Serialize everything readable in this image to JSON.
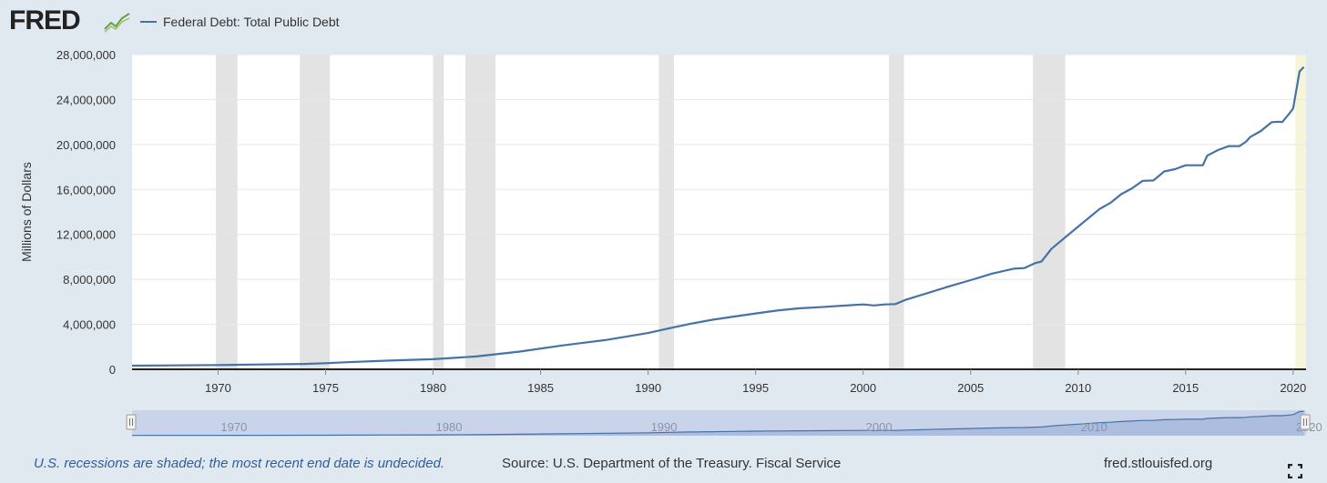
{
  "header": {
    "logo_text": "FRED",
    "logo_icon": "chart-line-icon",
    "legend_label": "Federal Debt: Total Public Debt"
  },
  "colors": {
    "series": "#4572a7",
    "recession": "#e3e3e3",
    "undecided_recession": "#f7f5d9",
    "background": "#e1e9f0",
    "plot_bg": "#ffffff",
    "navigator_bg": "#c9d4ea",
    "footer_note": "#2e5e9c"
  },
  "chart_data": {
    "type": "line",
    "ylabel": "Millions of Dollars",
    "xlabel": "",
    "xlim": [
      1966.0,
      2020.6
    ],
    "ylim": [
      0,
      28000000
    ],
    "yticks": [
      0,
      4000000,
      8000000,
      12000000,
      16000000,
      20000000,
      24000000,
      28000000
    ],
    "ytick_labels": [
      "0",
      "4,000,000",
      "8,000,000",
      "12,000,000",
      "16,000,000",
      "20,000,000",
      "24,000,000",
      "28,000,000"
    ],
    "xticks": [
      1970,
      1975,
      1980,
      1985,
      1990,
      1995,
      2000,
      2005,
      2010,
      2015,
      2020
    ],
    "xtick_labels": [
      "1970",
      "1975",
      "1980",
      "1985",
      "1990",
      "1995",
      "2000",
      "2005",
      "2010",
      "2015",
      "2020"
    ],
    "grid": "horizontal",
    "recessions": [
      [
        1969.9,
        1970.9
      ],
      [
        1973.8,
        1975.2
      ],
      [
        1980.0,
        1980.5
      ],
      [
        1981.5,
        1982.9
      ],
      [
        1990.5,
        1991.2
      ],
      [
        2001.2,
        2001.9
      ],
      [
        2007.9,
        2009.4
      ]
    ],
    "undecided_recession": [
      2020.1,
      2020.6
    ],
    "series": [
      {
        "name": "Federal Debt: Total Public Debt",
        "x": [
          1966.0,
          1968.0,
          1970.0,
          1972.0,
          1974.0,
          1975.0,
          1976.0,
          1978.0,
          1980.0,
          1982.0,
          1984.0,
          1986.0,
          1988.0,
          1990.0,
          1991.0,
          1992.0,
          1993.0,
          1994.0,
          1995.0,
          1996.0,
          1997.0,
          1998.0,
          1999.0,
          2000.0,
          2000.5,
          2001.0,
          2001.5,
          2002.0,
          2003.0,
          2004.0,
          2005.0,
          2006.0,
          2007.0,
          2007.5,
          2008.0,
          2008.3,
          2008.75,
          2009.0,
          2010.0,
          2011.0,
          2011.5,
          2012.0,
          2012.5,
          2013.0,
          2013.5,
          2014.0,
          2014.5,
          2015.0,
          2015.5,
          2015.8,
          2016.0,
          2016.5,
          2017.0,
          2017.5,
          2017.8,
          2018.0,
          2018.5,
          2019.0,
          2019.3,
          2019.5,
          2019.8,
          2020.0,
          2020.3,
          2020.5
        ],
        "values": [
          320000,
          350000,
          380000,
          430000,
          480000,
          540000,
          630000,
          780000,
          900000,
          1140000,
          1570000,
          2120000,
          2600000,
          3230000,
          3660000,
          4060000,
          4410000,
          4690000,
          4970000,
          5230000,
          5420000,
          5530000,
          5660000,
          5770000,
          5680000,
          5770000,
          5800000,
          6200000,
          6780000,
          7380000,
          7930000,
          8510000,
          8950000,
          9010000,
          9440000,
          9600000,
          10700000,
          11100000,
          12700000,
          14270000,
          14800000,
          15580000,
          16100000,
          16770000,
          16800000,
          17600000,
          17800000,
          18150000,
          18150000,
          18150000,
          19000000,
          19500000,
          19850000,
          19850000,
          20240000,
          20660000,
          21200000,
          21980000,
          22030000,
          22000000,
          22700000,
          23200000,
          26500000,
          26900000
        ]
      }
    ],
    "navigator_labels": [
      "1970",
      "1980",
      "1990",
      "2000",
      "2010",
      "2020"
    ]
  },
  "footer": {
    "note": "U.S. recessions are shaded; the most recent end date is undecided.",
    "source": "Source: U.S. Department of the Treasury. Fiscal Service",
    "site": "fred.stlouisfed.org"
  }
}
